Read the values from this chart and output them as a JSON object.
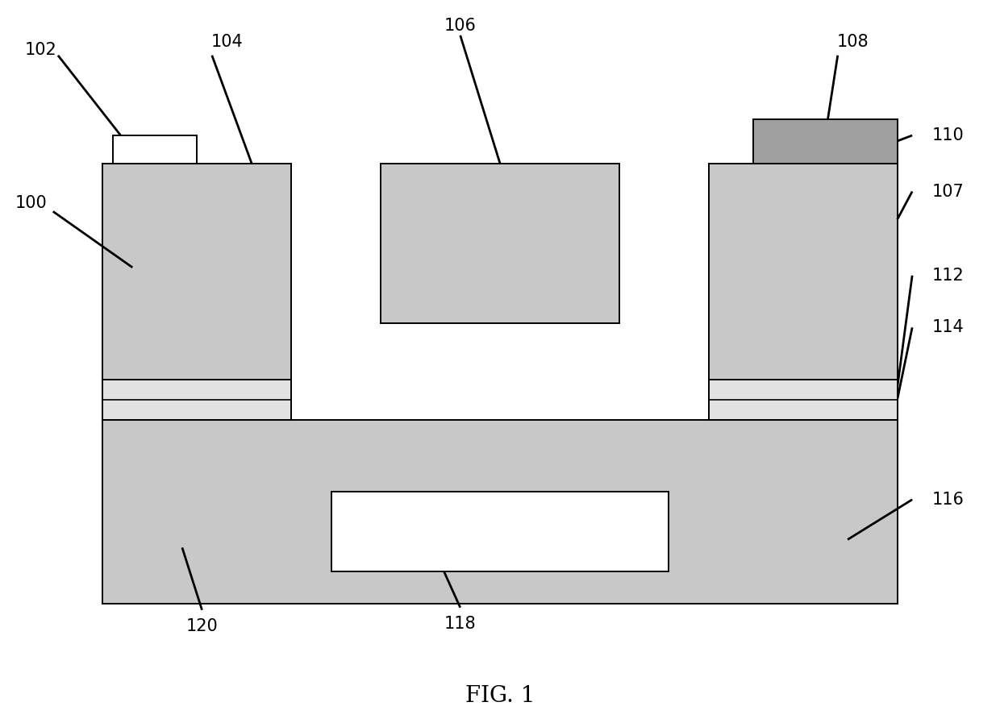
{
  "fig_width": 12.4,
  "fig_height": 9.02,
  "bg_color": "#ffffff",
  "title": "FIG. 1",
  "title_fontsize": 20,
  "label_fontsize": 15,
  "lw": 1.4,
  "colors": {
    "stipple_gray": "#c8c8c8",
    "light_stipple": "#e2e2e2",
    "dark_contact": "#a0a0a0",
    "black": "#000000",
    "white": "#ffffff"
  },
  "layout": {
    "xlim": [
      0,
      10
    ],
    "ylim": [
      0,
      9
    ],
    "base_x1": 1.0,
    "base_x2": 9.0,
    "base_y1": 1.5,
    "base_y2": 3.8,
    "lp_x1": 1.0,
    "lp_x2": 2.9,
    "rp_x1": 7.1,
    "rp_x2": 9.0,
    "pillar_y1": 3.8,
    "pillar_y2": 7.0,
    "thin_y1": 3.8,
    "thin_y2": 4.3,
    "thin_line_y": 4.05,
    "cp_x1": 3.8,
    "cp_x2": 6.2,
    "cp_y1": 5.0,
    "cp_y2": 7.0,
    "metal_x1": 1.1,
    "metal_x2": 1.95,
    "metal_y1": 7.0,
    "metal_y2": 7.35,
    "tc_x1": 7.55,
    "tc_x2": 9.0,
    "tc_y1": 7.0,
    "tc_y2": 7.55,
    "gate_x1": 3.3,
    "gate_x2": 6.7,
    "gate_y1": 1.9,
    "gate_y2": 2.9
  }
}
